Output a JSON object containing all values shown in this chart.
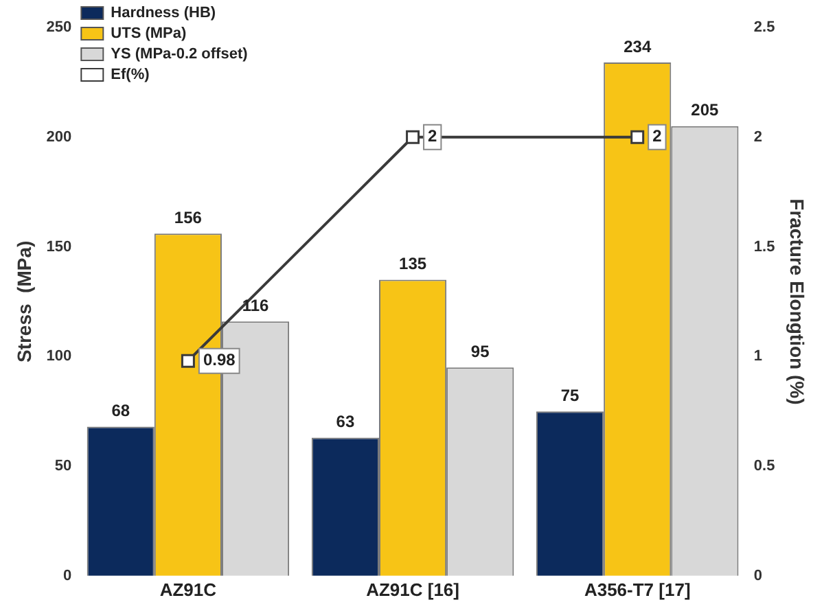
{
  "chart_data": {
    "type": "bar",
    "categories": [
      "AZ91C",
      "AZ91C [16]",
      "A356-T7 [17]"
    ],
    "ylabel": "Stress  (MPa)",
    "y2label": "Fracture Elongtion (%)",
    "ylim": [
      0,
      250
    ],
    "yticks": [
      0,
      50,
      100,
      150,
      200,
      250
    ],
    "y2lim": [
      0,
      2.5
    ],
    "y2ticks": [
      0,
      0.5,
      1,
      1.5,
      2,
      2.5
    ],
    "grid": false,
    "legend": "top left",
    "data_labels": true,
    "series": [
      {
        "name": "Hardness (HB)",
        "color": "#0c2a5c",
        "values": [
          68,
          63,
          75
        ]
      },
      {
        "name": "UTS (MPa)",
        "color": "#f7c416",
        "values": [
          156,
          135,
          234
        ]
      },
      {
        "name": "YS (MPa-0.2 offset)",
        "color": "#d8d8d8",
        "values": [
          116,
          95,
          205
        ]
      },
      {
        "name": "Ef(%)",
        "type": "line",
        "axis": "y2",
        "color": "#3a3a3a",
        "marker": "square",
        "values": [
          0.98,
          2,
          2
        ]
      }
    ]
  }
}
